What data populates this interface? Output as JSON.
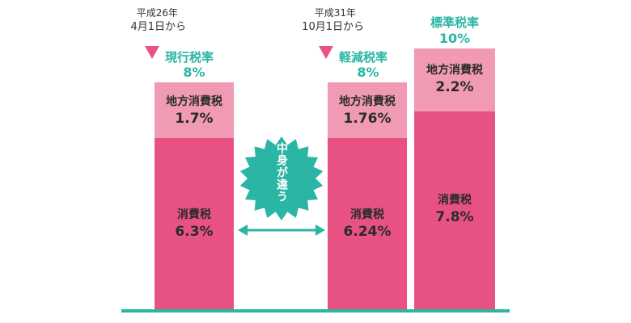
{
  "colors": {
    "teal": "#2bb5a5",
    "pink_light": "#f09ab4",
    "pink_dark": "#e85282",
    "arrow_pink": "#e75480",
    "text_dark": "#2b2b2b"
  },
  "chart_data": {
    "type": "bar",
    "stacked": true,
    "categories": [
      "現行税率 8%",
      "軽減税率 8%",
      "標準税率 10%"
    ],
    "series": [
      {
        "name": "消費税",
        "values": [
          6.3,
          6.24,
          7.8
        ]
      },
      {
        "name": "地方消費税",
        "values": [
          1.7,
          1.76,
          2.2
        ]
      }
    ],
    "totals": [
      8,
      8,
      10
    ],
    "grid": false,
    "legend": "none"
  },
  "dates": {
    "current": {
      "line1": "平成26年",
      "line2": "4月1日から"
    },
    "future": {
      "line1": "平成31年",
      "line2": "10月1日から"
    }
  },
  "bars": [
    {
      "rate_label": "現行税率",
      "rate_value": "8%",
      "top_name": "地方消費税",
      "top_value": "1.7%",
      "bottom_name": "消費税",
      "bottom_value": "6.3%"
    },
    {
      "rate_label": "軽減税率",
      "rate_value": "8%",
      "top_name": "地方消費税",
      "top_value": "1.76%",
      "bottom_name": "消費税",
      "bottom_value": "6.24%"
    },
    {
      "rate_label": "標準税率",
      "rate_value": "10%",
      "top_name": "地方消費税",
      "top_value": "2.2%",
      "bottom_name": "消費税",
      "bottom_value": "7.8%"
    }
  ],
  "burst_text": "中身が違う"
}
